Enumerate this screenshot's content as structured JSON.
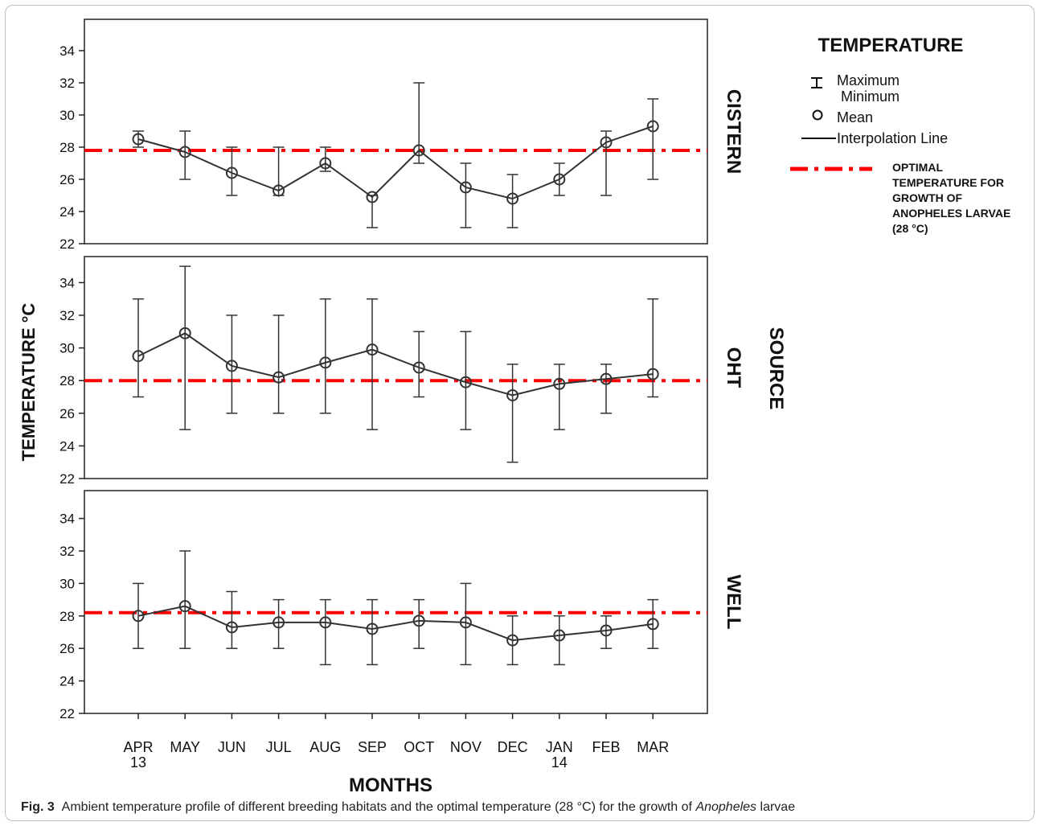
{
  "caption": {
    "label": "Fig. 3",
    "text_before": "Ambient temperature profile of different breeding habitats and the optimal temperature (28 °C) for the growth of ",
    "italic": "Anopheles",
    "text_after": " larvae"
  },
  "legend": {
    "title": "TEMPERATURE",
    "max_label": "Maximum",
    "min_label": "Minimum",
    "mean_label": "Mean",
    "line_label": "Interpolation Line",
    "optimal_lines": [
      "OPTIMAL",
      "TEMPERATURE FOR",
      "GROWTH OF",
      "ANOPHELES LARVAE",
      "(28 °C)"
    ],
    "optimal_color": "#ff0000"
  },
  "chart_data": {
    "type": "line",
    "ylabel": "TEMPERATURE °C",
    "xlabel": "MONTHS",
    "group_label": "SOURCE",
    "categories": [
      "APR",
      "MAY",
      "JUN",
      "JUL",
      "AUG",
      "SEP",
      "OCT",
      "NOV",
      "DEC",
      "JAN",
      "FEB",
      "MAR"
    ],
    "category_sublabels": [
      "13",
      "",
      "",
      "",
      "",
      "",
      "",
      "",
      "",
      "14",
      "",
      ""
    ],
    "ylim": [
      22,
      35
    ],
    "yticks": [
      22,
      24,
      26,
      28,
      30,
      32,
      34
    ],
    "line_color": "#333333",
    "panels": [
      {
        "name": "CISTERN",
        "optimal_line": 27.8,
        "mean": [
          28.5,
          27.7,
          26.4,
          25.3,
          27.0,
          24.9,
          27.8,
          25.5,
          24.8,
          26.0,
          28.3,
          29.3
        ],
        "max": [
          29,
          29,
          28,
          28,
          28,
          25,
          32,
          27,
          26.3,
          27,
          29,
          31
        ],
        "min": [
          28,
          26,
          25,
          25,
          26.5,
          23,
          27,
          23,
          23,
          25,
          25,
          26
        ]
      },
      {
        "name": "OHT",
        "optimal_line": 28.0,
        "mean": [
          29.5,
          30.9,
          28.9,
          28.2,
          29.1,
          29.9,
          28.8,
          27.9,
          27.1,
          27.8,
          28.1,
          28.4
        ],
        "max": [
          33,
          35,
          32,
          32,
          33,
          33,
          31,
          31,
          29,
          29,
          29,
          33
        ],
        "min": [
          27,
          25,
          26,
          26,
          26,
          25,
          27,
          25,
          23,
          25,
          26,
          27
        ]
      },
      {
        "name": "WELL",
        "optimal_line": 28.2,
        "mean": [
          28.0,
          28.6,
          27.3,
          27.6,
          27.6,
          27.2,
          27.7,
          27.6,
          26.5,
          26.8,
          27.1,
          27.5
        ],
        "max": [
          30,
          32,
          29.5,
          29,
          29,
          29,
          29,
          30,
          28,
          28,
          28,
          29
        ],
        "min": [
          26,
          26,
          26,
          26,
          25,
          25,
          26,
          25,
          25,
          25,
          26,
          26
        ]
      }
    ]
  }
}
